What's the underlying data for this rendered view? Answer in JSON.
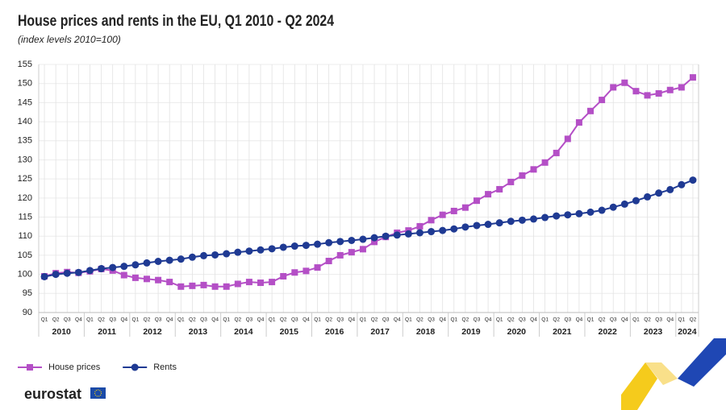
{
  "chart_data": {
    "type": "line",
    "title": "House prices and rents in the EU, Q1 2010 - Q2 2024",
    "subtitle": "(index levels 2010=100)",
    "categories": [
      "Q1",
      "Q2",
      "Q3",
      "Q4",
      "Q1",
      "Q2",
      "Q3",
      "Q4",
      "Q1",
      "Q2",
      "Q3",
      "Q4",
      "Q1",
      "Q2",
      "Q3",
      "Q4",
      "Q1",
      "Q2",
      "Q3",
      "Q4",
      "Q1",
      "Q2",
      "Q3",
      "Q4",
      "Q1",
      "Q2",
      "Q3",
      "Q4",
      "Q1",
      "Q2",
      "Q3",
      "Q4",
      "Q1",
      "Q2",
      "Q3",
      "Q4",
      "Q1",
      "Q2",
      "Q3",
      "Q4",
      "Q1",
      "Q2",
      "Q3",
      "Q4",
      "Q1",
      "Q2",
      "Q3",
      "Q4",
      "Q1",
      "Q2",
      "Q3",
      "Q4",
      "Q1",
      "Q2",
      "Q3",
      "Q4",
      "Q1",
      "Q2"
    ],
    "years": [
      "2010",
      "2011",
      "2012",
      "2013",
      "2014",
      "2015",
      "2016",
      "2017",
      "2018",
      "2019",
      "2020",
      "2021",
      "2022",
      "2023",
      "2024"
    ],
    "series": [
      {
        "name": "House prices",
        "color": "#b44fc6",
        "marker": "square",
        "values": [
          99.5,
          100.3,
          100.6,
          100.4,
          100.8,
          101.4,
          101.0,
          99.8,
          99.1,
          98.8,
          98.5,
          98.0,
          96.8,
          97.0,
          97.2,
          96.8,
          96.8,
          97.5,
          98.0,
          97.8,
          98.0,
          99.5,
          100.5,
          100.9,
          101.8,
          103.5,
          105.0,
          105.8,
          106.6,
          108.5,
          109.8,
          110.9,
          111.5,
          112.6,
          114.2,
          115.6,
          116.6,
          117.5,
          119.3,
          121.0,
          122.3,
          124.2,
          125.9,
          127.5,
          129.3,
          131.8,
          135.5,
          139.8,
          142.8,
          145.7,
          149.0,
          150.2,
          148.0,
          146.9,
          147.4,
          148.3,
          149.0,
          151.6
        ]
      },
      {
        "name": "Rents",
        "color": "#1f3a93",
        "marker": "circle",
        "values": [
          99.4,
          100.0,
          100.3,
          100.5,
          101.0,
          101.5,
          101.8,
          102.1,
          102.5,
          103.0,
          103.4,
          103.7,
          104.0,
          104.5,
          104.9,
          105.1,
          105.4,
          105.8,
          106.1,
          106.4,
          106.7,
          107.1,
          107.4,
          107.6,
          107.9,
          108.3,
          108.6,
          108.9,
          109.2,
          109.6,
          110.0,
          110.3,
          110.6,
          110.9,
          111.2,
          111.5,
          111.9,
          112.4,
          112.8,
          113.1,
          113.5,
          113.9,
          114.2,
          114.5,
          114.9,
          115.3,
          115.6,
          115.9,
          116.3,
          116.8,
          117.6,
          118.4,
          119.3,
          120.3,
          121.3,
          122.2,
          123.5,
          124.7
        ]
      }
    ],
    "ylim": [
      90,
      155
    ],
    "yticks": [
      90,
      95,
      100,
      105,
      110,
      115,
      120,
      125,
      130,
      135,
      140,
      145,
      150,
      155
    ],
    "grid": true,
    "legend": "bottom-left",
    "branding": "eurostat"
  }
}
